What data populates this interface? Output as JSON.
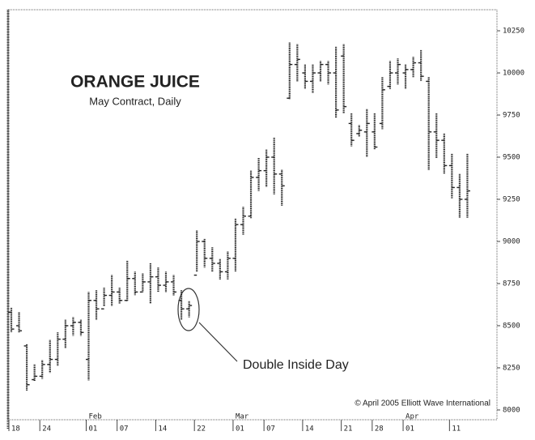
{
  "chart_data": {
    "type": "ohlc",
    "title": "ORANGE JUICE",
    "subtitle": "May Contract, Daily",
    "annotation": "Double Inside Day",
    "credit": "© April 2005 Elliott Wave International",
    "color": "#222222",
    "categories": [
      "18",
      null,
      null,
      null,
      "24",
      null,
      null,
      null,
      null,
      null,
      "01",
      null,
      null,
      null,
      "07",
      null,
      null,
      null,
      null,
      "14",
      null,
      null,
      null,
      null,
      "22",
      null,
      null,
      null,
      null,
      "01",
      null,
      null,
      null,
      "07",
      null,
      null,
      null,
      null,
      "14",
      null,
      null,
      null,
      null,
      "21",
      null,
      null,
      null,
      "28",
      null,
      null,
      null,
      "01",
      null,
      null,
      null,
      null,
      null,
      "11",
      null,
      null
    ],
    "months": [
      {
        "label": "Feb",
        "at": 10
      },
      {
        "label": "Mar",
        "at": 29
      },
      {
        "label": "Apr",
        "at": 51
      }
    ],
    "open": [
      8580,
      8500,
      8380,
      8180,
      8200,
      8270,
      8300,
      8420,
      8500,
      8520,
      8300,
      8650,
      8600,
      8680,
      8700,
      8650,
      8780,
      8700,
      8760,
      8790,
      8740,
      8760,
      8650,
      8600,
      8800,
      9000,
      8900,
      8870,
      8820,
      8900,
      9100,
      9150,
      9380,
      9420,
      9500,
      9400,
      9850,
      10050,
      10000,
      9950,
      10000,
      10050,
      10000,
      10100,
      9700,
      9640,
      9650,
      9650,
      9700,
      9920,
      10000,
      10000,
      10020,
      10060,
      9950,
      9650,
      9600,
      9450,
      9320,
      9250
    ],
    "high": [
      8606,
      8580,
      8390,
      8270,
      8295,
      8415,
      8460,
      8535,
      8550,
      8535,
      8700,
      8710,
      8725,
      8800,
      8725,
      8885,
      8820,
      8810,
      8870,
      8845,
      8820,
      8800,
      8710,
      8645,
      9065,
      9015,
      8965,
      8895,
      8940,
      9135,
      9205,
      9420,
      9495,
      9545,
      9615,
      9425,
      10180,
      10170,
      10050,
      10050,
      10070,
      10070,
      10155,
      10170,
      9760,
      9690,
      9785,
      9760,
      9975,
      10070,
      10085,
      10050,
      10095,
      10135,
      9975,
      9760,
      9640,
      9520,
      9400,
      9520
    ],
    "low": [
      8462,
      8460,
      8115,
      8170,
      8185,
      8220,
      8260,
      8365,
      8440,
      8440,
      8175,
      8535,
      8615,
      8615,
      8630,
      8645,
      8680,
      8700,
      8630,
      8700,
      8700,
      8680,
      8535,
      8550,
      8820,
      8845,
      8820,
      8775,
      8775,
      8820,
      9040,
      9135,
      9300,
      9325,
      9280,
      9210,
      9845,
      9950,
      9905,
      9880,
      9950,
      9930,
      9735,
      9760,
      9565,
      9620,
      9500,
      9545,
      9665,
      9905,
      9930,
      9905,
      9975,
      9950,
      9425,
      9495,
      9400,
      9255,
      9140,
      9140
    ],
    "close": [
      8480,
      8470,
      8150,
      8200,
      8270,
      8300,
      8420,
      8500,
      8520,
      8460,
      8650,
      8600,
      8680,
      8700,
      8650,
      8780,
      8700,
      8760,
      8790,
      8740,
      8760,
      8700,
      8600,
      8620,
      9000,
      8900,
      8870,
      8820,
      8900,
      9100,
      9150,
      9380,
      9420,
      9500,
      9400,
      9330,
      10050,
      10080,
      9950,
      10000,
      10050,
      10000,
      9780,
      9800,
      9600,
      9660,
      9700,
      9560,
      9900,
      10000,
      10050,
      10020,
      10060,
      9980,
      9650,
      9600,
      9450,
      9320,
      9250,
      9300
    ],
    "ylim": [
      7942,
      10375
    ],
    "yticks": [
      8000,
      8250,
      8500,
      8750,
      9000,
      9250,
      9500,
      9750,
      10000,
      10250
    ]
  }
}
